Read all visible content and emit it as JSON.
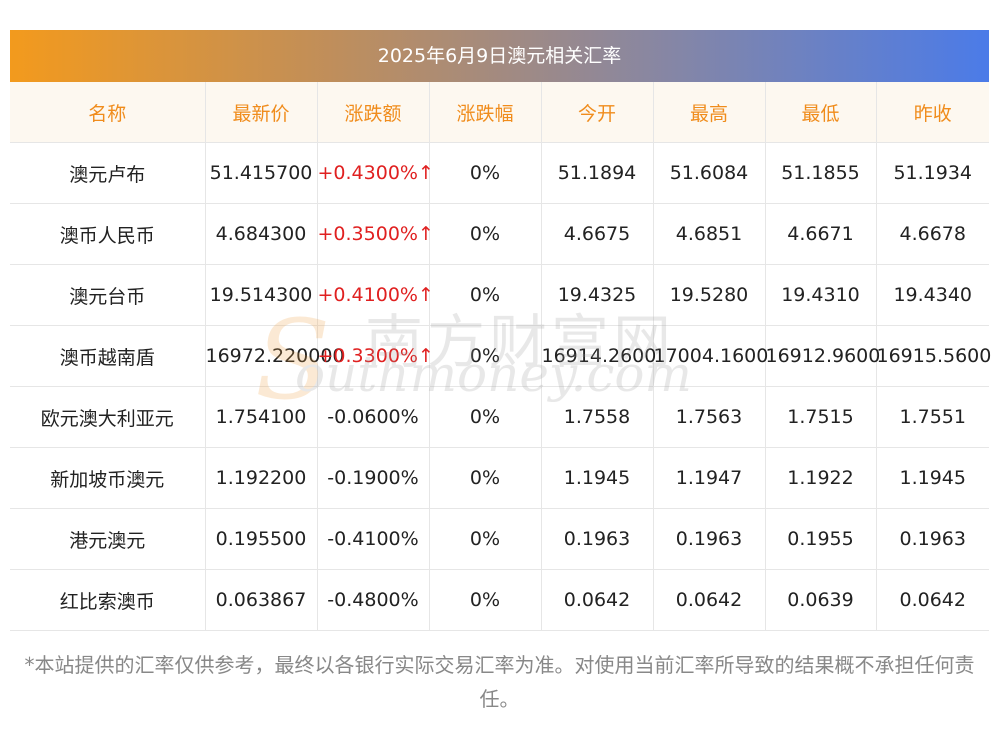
{
  "title": "2025年6月9日澳元相关汇率",
  "columns": [
    "名称",
    "最新价",
    "涨跌额",
    "涨跌幅",
    "今开",
    "最高",
    "最低",
    "昨收"
  ],
  "rows": [
    {
      "name": "澳元卢布",
      "latest": "51.415700",
      "change": "+0.4300%↑",
      "change_pct": "0%",
      "open": "51.1894",
      "high": "51.6084",
      "low": "51.1855",
      "prev_close": "51.1934",
      "up": true
    },
    {
      "name": "澳币人民币",
      "latest": "4.684300",
      "change": "+0.3500%↑",
      "change_pct": "0%",
      "open": "4.6675",
      "high": "4.6851",
      "low": "4.6671",
      "prev_close": "4.6678",
      "up": true
    },
    {
      "name": "澳元台币",
      "latest": "19.514300",
      "change": "+0.4100%↑",
      "change_pct": "0%",
      "open": "19.4325",
      "high": "19.5280",
      "low": "19.4310",
      "prev_close": "19.4340",
      "up": true
    },
    {
      "name": "澳币越南盾",
      "latest": "16972.220000",
      "change": "+0.3300%↑",
      "change_pct": "0%",
      "open": "16914.2600",
      "high": "17004.1600",
      "low": "16912.9600",
      "prev_close": "16915.5600",
      "up": true
    },
    {
      "name": "欧元澳大利亚元",
      "latest": "1.754100",
      "change": "-0.0600%",
      "change_pct": "0%",
      "open": "1.7558",
      "high": "1.7563",
      "low": "1.7515",
      "prev_close": "1.7551",
      "up": false
    },
    {
      "name": "新加坡币澳元",
      "latest": "1.192200",
      "change": "-0.1900%",
      "change_pct": "0%",
      "open": "1.1945",
      "high": "1.1947",
      "low": "1.1922",
      "prev_close": "1.1945",
      "up": false
    },
    {
      "name": "港元澳元",
      "latest": "0.195500",
      "change": "-0.4100%",
      "change_pct": "0%",
      "open": "0.1963",
      "high": "0.1963",
      "low": "0.1955",
      "prev_close": "0.1963",
      "up": false
    },
    {
      "name": "红比索澳币",
      "latest": "0.063867",
      "change": "-0.4800%",
      "change_pct": "0%",
      "open": "0.0642",
      "high": "0.0642",
      "low": "0.0639",
      "prev_close": "0.0642",
      "up": false
    }
  ],
  "watermark": {
    "cn": "南方财富网",
    "en": "outhmoney.com",
    "logo_letter": "S"
  },
  "footnote": "*本站提供的汇率仅供参考，最终以各银行实际交易汇率为准。对使用当前汇率所导致的结果概不承担任何责任。",
  "colors": {
    "header_text": "#f08c1c",
    "up": "#e02020",
    "gradient_start": "#f39a1d",
    "gradient_end": "#4b7be8"
  }
}
